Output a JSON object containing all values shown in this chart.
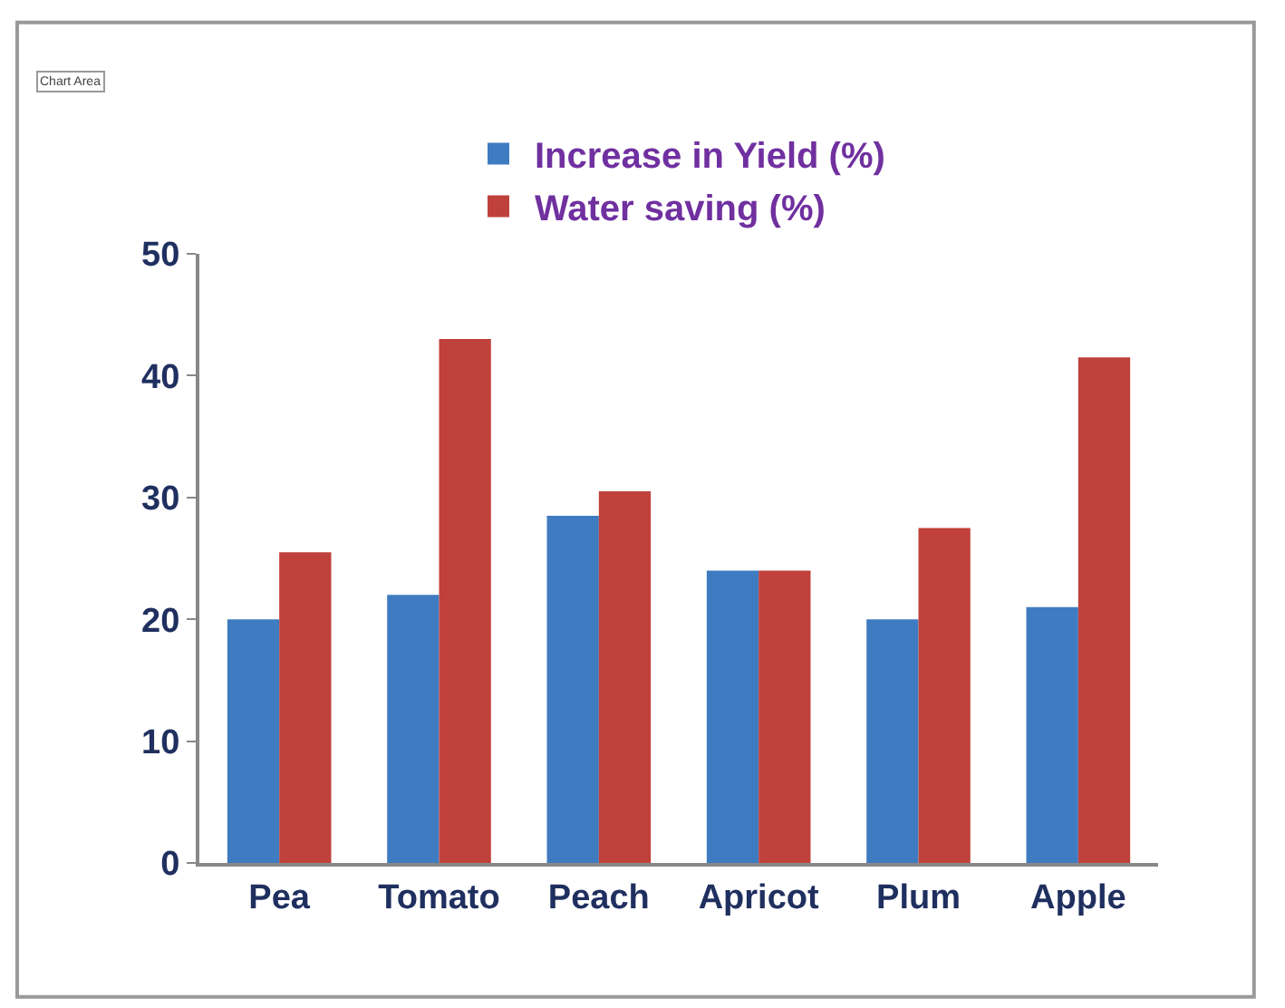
{
  "chart_data": {
    "type": "bar",
    "categories": [
      "Pea",
      "Tomato",
      "Peach",
      "Apricot",
      "Plum",
      "Apple"
    ],
    "series": [
      {
        "name": "Increase in Yield (%)",
        "color": "#3f7bc1",
        "values": [
          20,
          22,
          28.5,
          24,
          20,
          21
        ]
      },
      {
        "name": "Water saving (%)",
        "color": "#c0413b",
        "values": [
          25.5,
          43,
          30.5,
          24,
          27.5,
          41.5
        ]
      }
    ],
    "ylim": [
      0,
      50
    ],
    "yticks": [
      0,
      10,
      20,
      30,
      40,
      50
    ],
    "grid": false,
    "legend": "top",
    "annotations": [
      "Chart Area"
    ]
  }
}
